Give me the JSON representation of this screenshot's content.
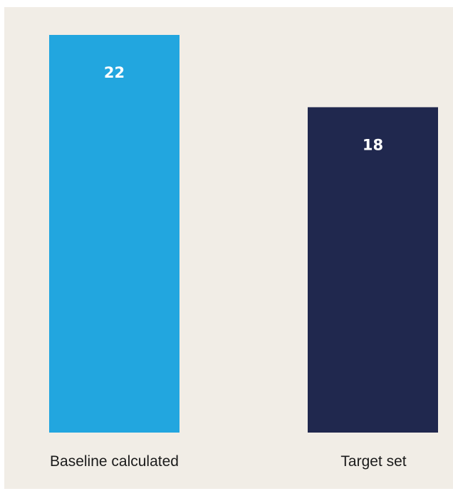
{
  "chart_data": {
    "type": "bar",
    "title": "",
    "xlabel": "",
    "ylabel": "",
    "categories": [
      "Baseline calculated",
      "Target set"
    ],
    "values": [
      22,
      18
    ],
    "value_labels": [
      "22",
      "18"
    ],
    "ylim": [
      0,
      22
    ],
    "grid": false,
    "legend": "none",
    "colors": [
      "#22a6df",
      "#20284e"
    ],
    "background": "#f1ede6"
  }
}
